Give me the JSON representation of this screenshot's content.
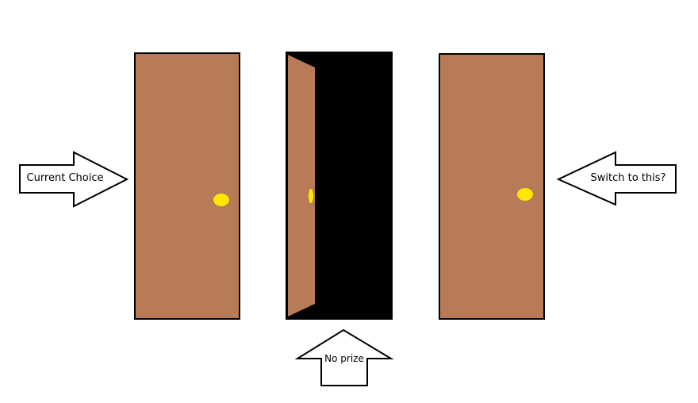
{
  "labels": {
    "current_choice": "Current Choice",
    "switch": "Switch to this?",
    "no_prize": "No prize"
  },
  "colors": {
    "door": "#b87b58",
    "knob": "#ffe800",
    "outline": "#000000",
    "open_doorway": "#000000",
    "background": "#ffffff"
  },
  "doors": [
    {
      "id": "door-1",
      "state": "closed"
    },
    {
      "id": "door-2",
      "state": "open"
    },
    {
      "id": "door-3",
      "state": "closed"
    }
  ]
}
